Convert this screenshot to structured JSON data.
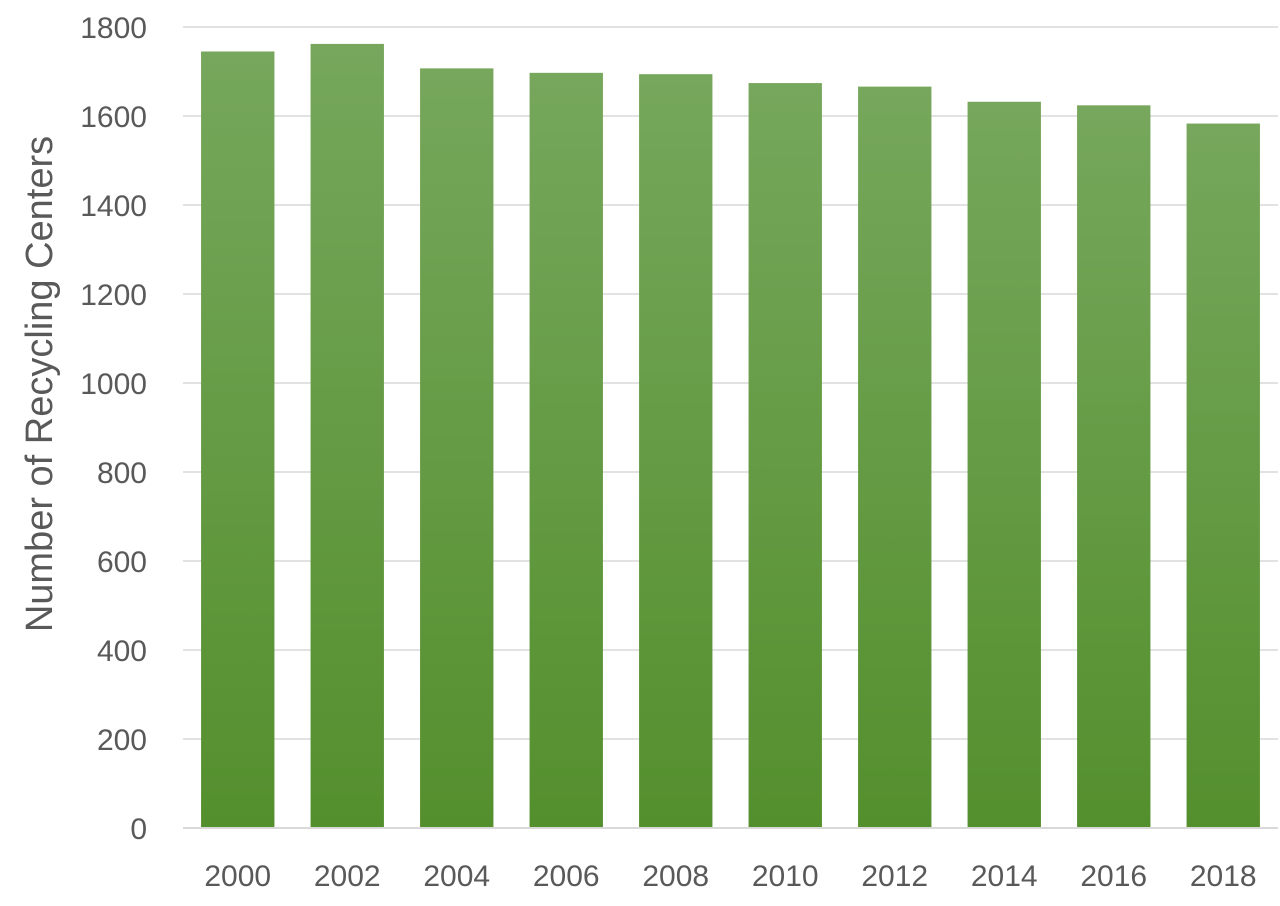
{
  "chart_data": {
    "type": "bar",
    "title": "",
    "xlabel": "",
    "ylabel": "Number of Recycling Centers",
    "categories": [
      "2000",
      "2002",
      "2004",
      "2006",
      "2008",
      "2010",
      "2012",
      "2014",
      "2016",
      "2018"
    ],
    "values": [
      1745,
      1762,
      1707,
      1697,
      1694,
      1674,
      1666,
      1632,
      1624,
      1583
    ],
    "ylim": [
      0,
      1800
    ],
    "yticks": [
      0,
      200,
      400,
      600,
      800,
      1000,
      1200,
      1400,
      1600,
      1800
    ],
    "grid": true,
    "legend": "none",
    "colors": {
      "bar_top": "#76a75c",
      "bar_bottom": "#548f2d",
      "gridline": "#d9d9d9",
      "axis_line": "#d9d9d9",
      "text": "#595959"
    }
  }
}
